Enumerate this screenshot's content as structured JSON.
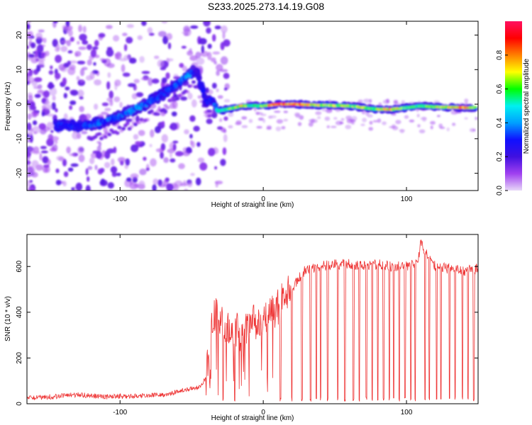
{
  "title": "S233.2025.273.14.19.G08",
  "colors": {
    "snr_line": "#ee3333",
    "axis": "#000000",
    "colormap": [
      "#e8d8f8",
      "#a040f0",
      "#4010e0",
      "#1010ff",
      "#00a0ff",
      "#00f0f0",
      "#00ff00",
      "#ffff00",
      "#ff8000",
      "#ff0000",
      "#ff1060"
    ]
  },
  "chart_data": [
    {
      "type": "heatmap",
      "title": "",
      "xlabel": "Height of straight line (km)",
      "ylabel": "Frequency (Hz)",
      "xlim": [
        -165,
        150
      ],
      "ylim": [
        -25,
        24
      ],
      "x_ticks": [
        -100,
        0,
        100
      ],
      "y_ticks": [
        -20,
        -10,
        0,
        10,
        20
      ],
      "colorbar": {
        "label": "Normalized spectral amplitude",
        "range": [
          0.0,
          1.0
        ],
        "ticks": [
          "0.0",
          "0.2",
          "0.4",
          "0.6",
          "0.8"
        ],
        "tick_values": [
          0.0,
          0.2,
          0.4,
          0.6,
          0.8
        ]
      },
      "ridge": {
        "x": [
          -145,
          -130,
          -115,
          -100,
          -90,
          -80,
          -70,
          -60,
          -52,
          -47,
          -40,
          -35,
          -32,
          -25,
          -15,
          -10,
          0,
          10,
          20,
          40,
          60,
          80,
          90,
          100,
          110,
          120,
          140,
          148
        ],
        "freq": [
          -6,
          -6.5,
          -5.5,
          -3.5,
          -1.5,
          0.5,
          3,
          6,
          8.5,
          10,
          0.5,
          1,
          -2,
          -1.5,
          -0.5,
          -0.5,
          -0.5,
          0,
          0,
          -0.3,
          -0.5,
          -1.5,
          -1.5,
          -1,
          -0.5,
          -0.8,
          -1,
          -1
        ],
        "amplitude": [
          0.3,
          0.3,
          0.35,
          0.35,
          0.4,
          0.35,
          0.3,
          0.35,
          0.4,
          0.25,
          0.3,
          0.3,
          0.5,
          0.6,
          0.8,
          0.55,
          0.65,
          0.95,
          0.85,
          0.7,
          0.65,
          0.7,
          0.8,
          0.6,
          0.6,
          0.65,
          0.85,
          0.6
        ]
      }
    },
    {
      "type": "line",
      "title": "",
      "xlabel": "Height of straight line (km)",
      "ylabel": "SNR (10 * v/v)",
      "xlim": [
        -165,
        150
      ],
      "ylim": [
        0,
        740
      ],
      "x_ticks": [
        -100,
        0,
        100
      ],
      "y_ticks": [
        0,
        200,
        400,
        600
      ],
      "series": [
        {
          "x": [
            -165,
            -150,
            -130,
            -110,
            -90,
            -70,
            -55,
            -45,
            -40,
            -36,
            -33,
            -30,
            -25,
            -20,
            -15,
            -10,
            -5,
            0,
            5,
            10,
            15,
            20,
            25,
            30,
            40,
            50,
            60,
            70,
            80,
            90,
            100,
            108,
            110,
            120,
            130,
            140,
            150
          ],
          "values": [
            25,
            30,
            40,
            30,
            35,
            40,
            60,
            70,
            110,
            320,
            420,
            380,
            320,
            330,
            300,
            340,
            360,
            380,
            400,
            420,
            470,
            500,
            550,
            590,
            600,
            610,
            610,
            600,
            610,
            600,
            600,
            620,
            700,
            600,
            590,
            580,
            590
          ]
        }
      ],
      "dropouts_x": [
        -28,
        -20,
        12,
        20,
        27,
        33,
        37,
        40,
        45,
        52,
        57,
        63,
        67,
        72,
        76,
        80,
        84,
        88,
        91,
        95,
        99,
        103,
        106,
        113,
        116,
        121,
        124,
        130,
        134,
        139,
        143,
        147
      ]
    }
  ]
}
